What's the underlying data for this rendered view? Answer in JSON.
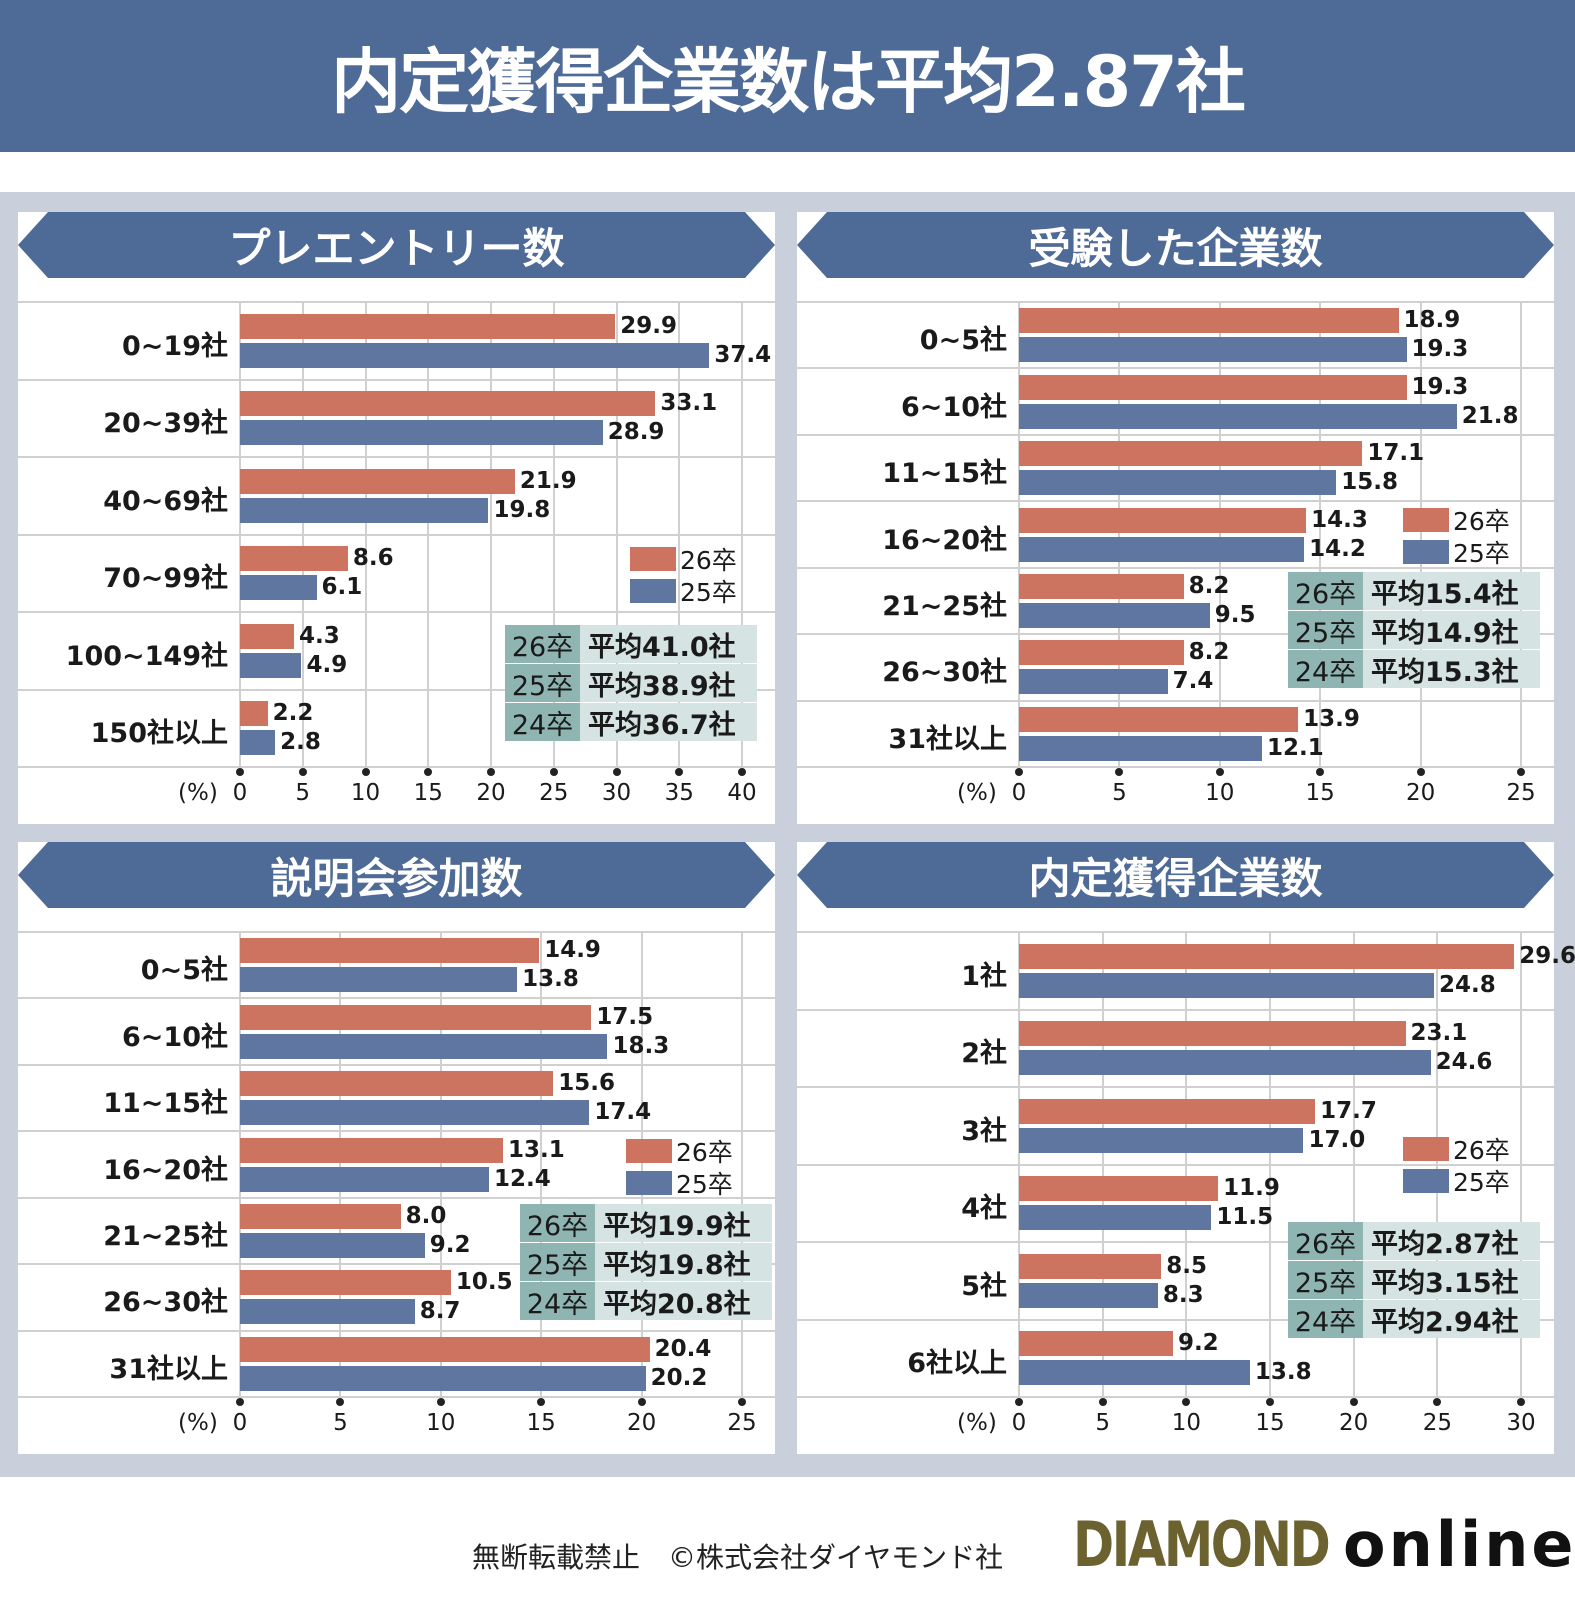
{
  "title": "内定獲得企業数は平均2.87社",
  "colors": {
    "s26": "#cd7460",
    "s25": "#5f76a0",
    "header": "#4e6a96"
  },
  "footer": {
    "notice": "無断転載禁止　©株式会社ダイヤモンド社",
    "logo_main": "DIAMOND",
    "logo_sub": "online"
  },
  "chart_data": [
    {
      "type": "bar",
      "title": "プレエントリー数",
      "unit": "(%)",
      "xlim": [
        0,
        40
      ],
      "ticks": [
        "0",
        "5",
        "10",
        "15",
        "20",
        "25",
        "30",
        "35",
        "40"
      ],
      "categories": [
        "0~19社",
        "20~39社",
        "40~69社",
        "70~99社",
        "100~149社",
        "150社以上"
      ],
      "series": [
        {
          "name": "26卒",
          "values": [
            29.9,
            33.1,
            21.9,
            8.6,
            4.3,
            2.2
          ]
        },
        {
          "name": "25卒",
          "values": [
            37.4,
            28.9,
            19.8,
            6.1,
            4.9,
            2.8
          ]
        }
      ],
      "averages": [
        {
          "year": "26卒",
          "text": "平均41.0社"
        },
        {
          "year": "25卒",
          "text": "平均38.9社"
        },
        {
          "year": "24卒",
          "text": "平均36.7社"
        }
      ],
      "grid": true
    },
    {
      "type": "bar",
      "title": "受験した企業数",
      "unit": "(%)",
      "xlim": [
        0,
        25
      ],
      "ticks": [
        "0",
        "5",
        "10",
        "15",
        "20",
        "25"
      ],
      "categories": [
        "0~5社",
        "6~10社",
        "11~15社",
        "16~20社",
        "21~25社",
        "26~30社",
        "31社以上"
      ],
      "series": [
        {
          "name": "26卒",
          "values": [
            18.9,
            19.3,
            17.1,
            14.3,
            8.2,
            8.2,
            13.9
          ]
        },
        {
          "name": "25卒",
          "values": [
            19.3,
            21.8,
            15.8,
            14.2,
            9.5,
            7.4,
            12.1
          ]
        }
      ],
      "averages": [
        {
          "year": "26卒",
          "text": "平均15.4社"
        },
        {
          "year": "25卒",
          "text": "平均14.9社"
        },
        {
          "year": "24卒",
          "text": "平均15.3社"
        }
      ],
      "grid": true
    },
    {
      "type": "bar",
      "title": "説明会参加数",
      "unit": "(%)",
      "xlim": [
        0,
        25
      ],
      "ticks": [
        "0",
        "5",
        "10",
        "15",
        "20",
        "25"
      ],
      "categories": [
        "0~5社",
        "6~10社",
        "11~15社",
        "16~20社",
        "21~25社",
        "26~30社",
        "31社以上"
      ],
      "series": [
        {
          "name": "26卒",
          "values": [
            14.9,
            17.5,
            15.6,
            13.1,
            8.0,
            10.5,
            20.4
          ]
        },
        {
          "name": "25卒",
          "values": [
            13.8,
            18.3,
            17.4,
            12.4,
            9.2,
            8.7,
            20.2
          ]
        }
      ],
      "averages": [
        {
          "year": "26卒",
          "text": "平均19.9社"
        },
        {
          "year": "25卒",
          "text": "平均19.8社"
        },
        {
          "year": "24卒",
          "text": "平均20.8社"
        }
      ],
      "grid": true
    },
    {
      "type": "bar",
      "title": "内定獲得企業数",
      "unit": "(%)",
      "xlim": [
        0,
        30
      ],
      "ticks": [
        "0",
        "5",
        "10",
        "15",
        "20",
        "25",
        "30"
      ],
      "categories": [
        "1社",
        "2社",
        "3社",
        "4社",
        "5社",
        "6社以上"
      ],
      "series": [
        {
          "name": "26卒",
          "values": [
            29.6,
            23.1,
            17.7,
            11.9,
            8.5,
            9.2
          ]
        },
        {
          "name": "25卒",
          "values": [
            24.8,
            24.6,
            17.0,
            11.5,
            8.3,
            13.8
          ]
        }
      ],
      "averages": [
        {
          "year": "26卒",
          "text": "平均2.87社"
        },
        {
          "year": "25卒",
          "text": "平均3.15社"
        },
        {
          "year": "24卒",
          "text": "平均2.94社"
        }
      ],
      "grid": true
    }
  ]
}
